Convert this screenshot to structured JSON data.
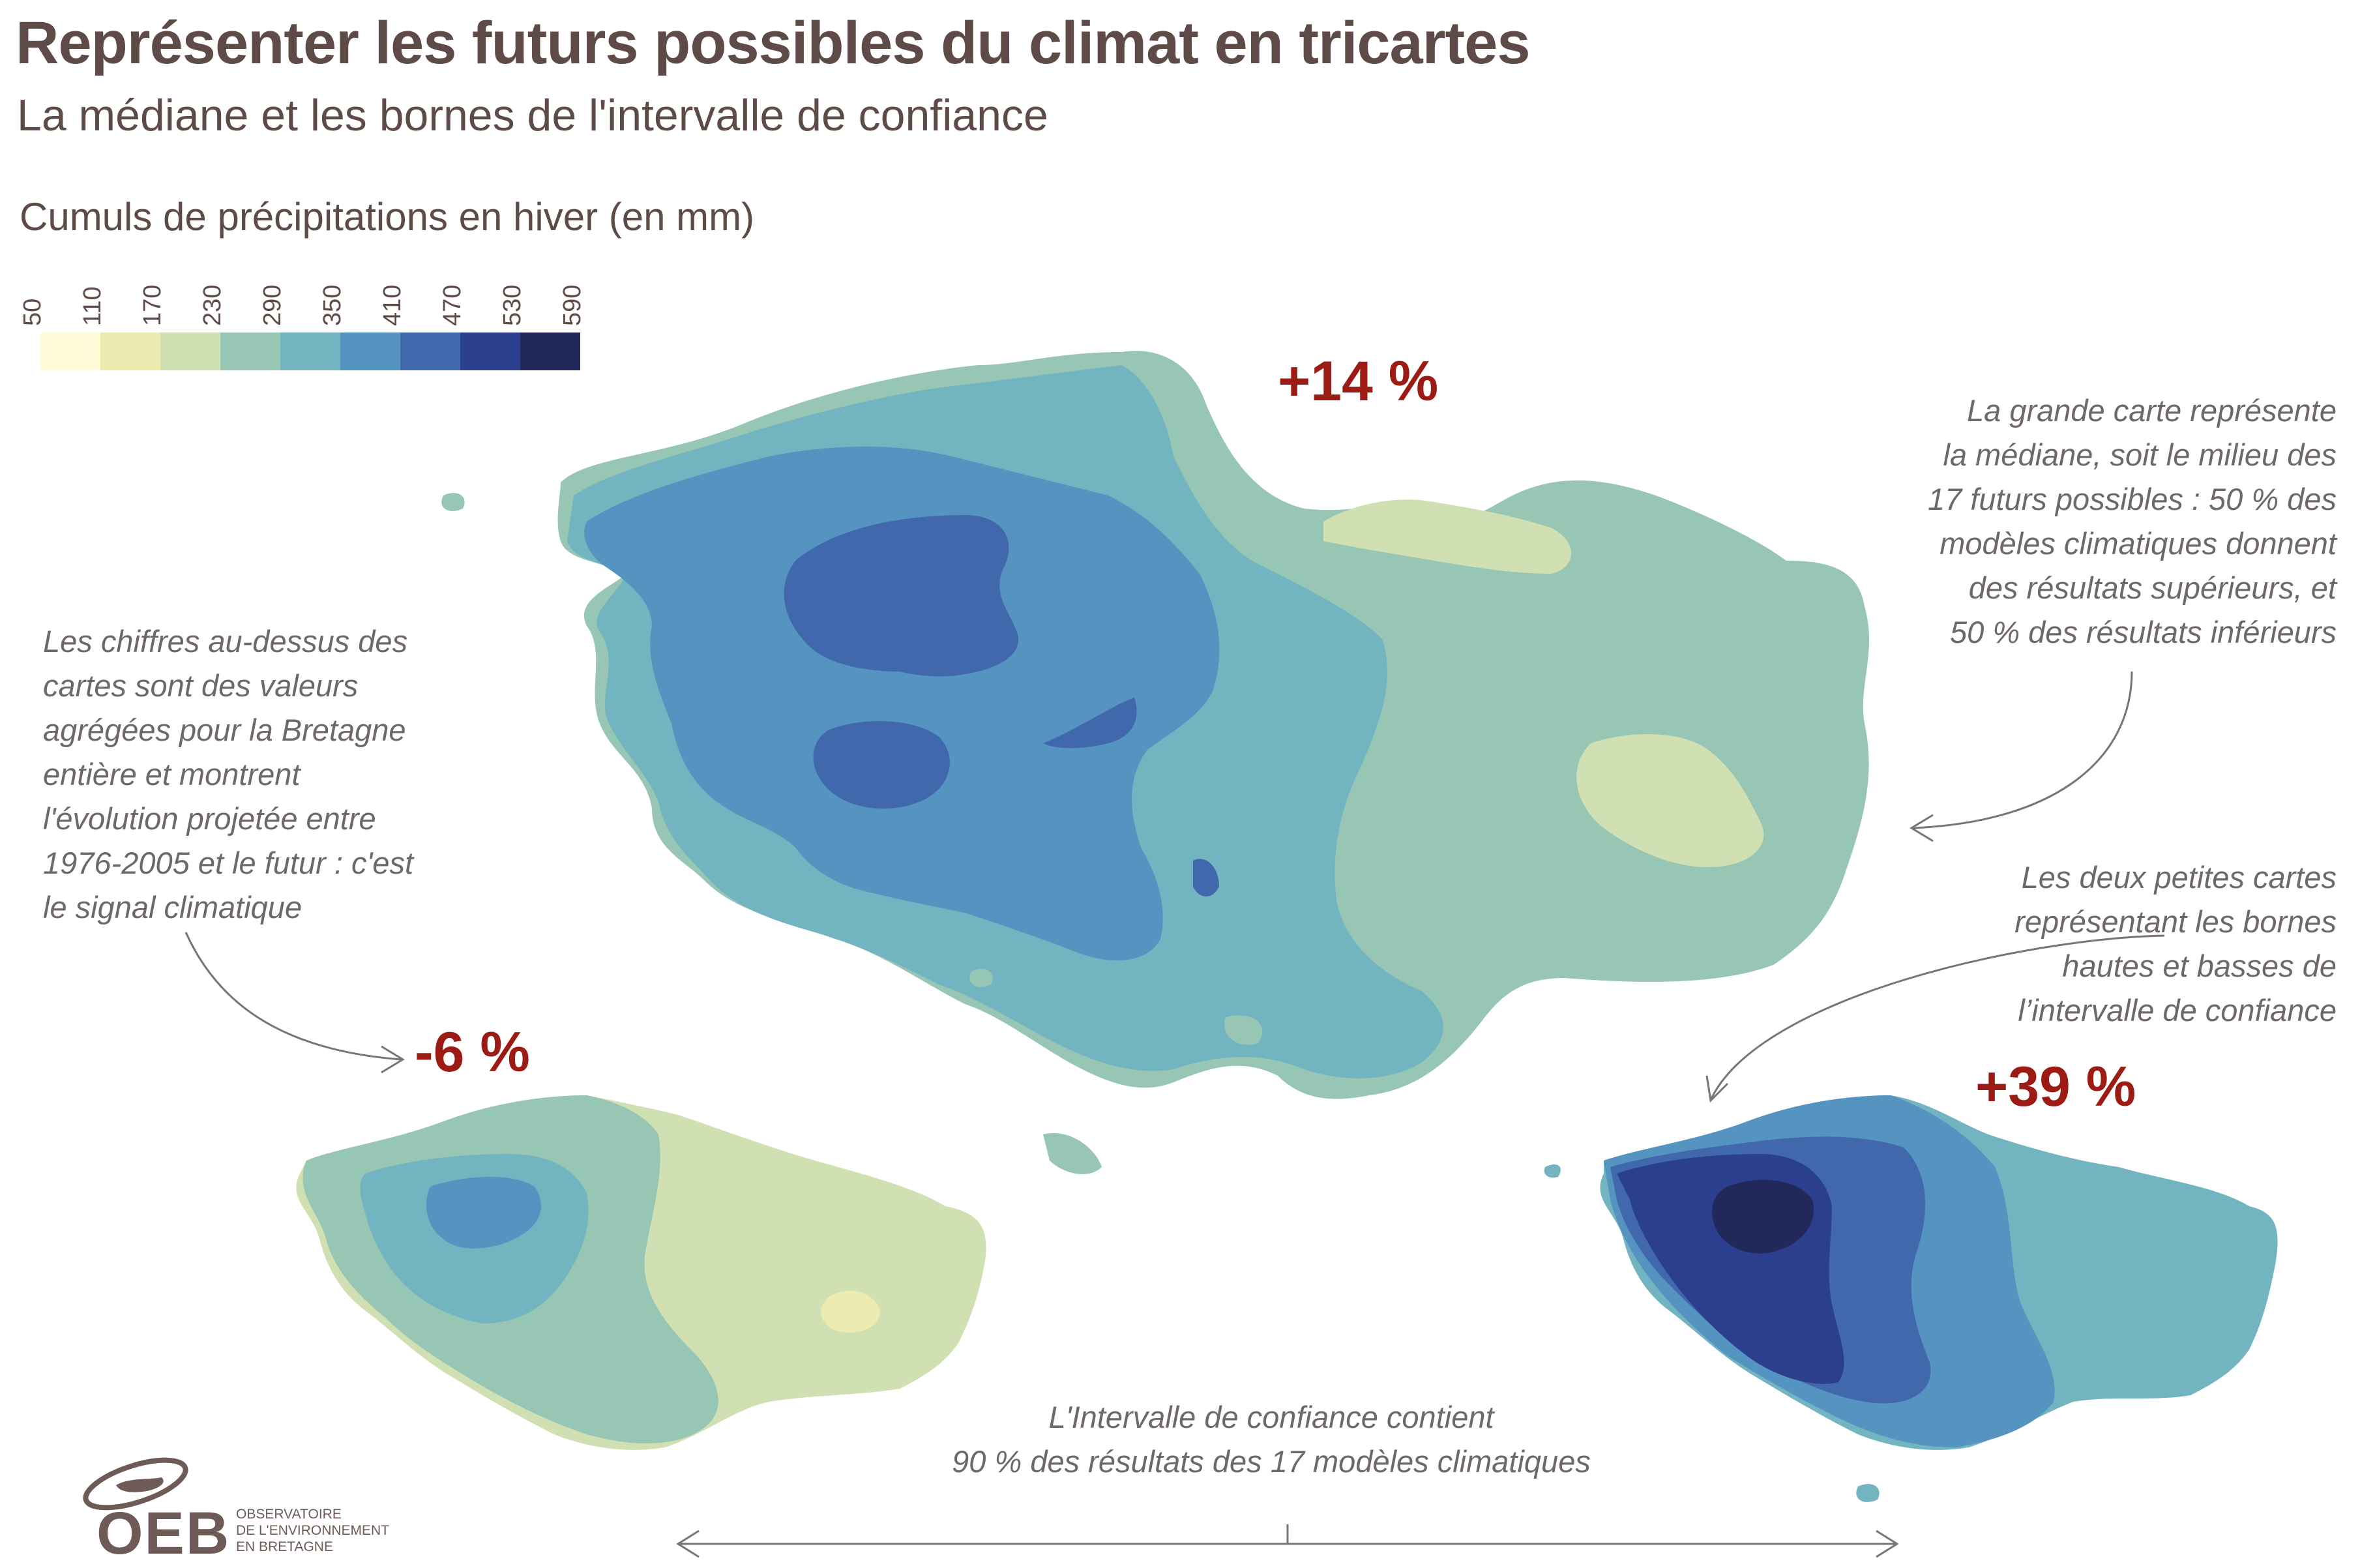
{
  "header": {
    "title": "Représenter les futurs possibles du climat en tricartes",
    "subtitle": "La médiane et les bornes de l'intervalle de confiance"
  },
  "legend": {
    "title": "Cumuls de précipitations en hiver (en mm)",
    "ticks": [
      "50",
      "110",
      "170",
      "230",
      "290",
      "350",
      "410",
      "470",
      "530",
      "590"
    ],
    "colors": [
      "#fefbd6",
      "#eeebb0",
      "#d1e0b3",
      "#97c6b5",
      "#72b4c0",
      "#5593c0",
      "#4168ad",
      "#2c3f8f",
      "#23285a"
    ]
  },
  "maps": {
    "median": {
      "signal": "+14 %"
    },
    "low": {
      "signal": "-6 %"
    },
    "high": {
      "signal": "+39 %"
    }
  },
  "notes": {
    "right_top": [
      "La grande carte représente",
      "la médiane, soit le milieu des",
      "17 futurs possibles : 50 % des",
      "modèles climatiques donnent",
      "des résultats supérieurs, et",
      "50 % des résultats inférieurs"
    ],
    "left": [
      "Les chiffres au-dessus des",
      "cartes sont des valeurs",
      "agrégées pour la Bretagne",
      "entière et montrent",
      "l'évolution projetée entre",
      "1976-2005 et le futur : c'est",
      "le signal climatique"
    ],
    "right_bottom": [
      "Les deux petites cartes",
      "représentant les bornes",
      "hautes et basses de",
      "l’intervalle de confiance"
    ],
    "bottom": [
      "L'Intervalle de confiance contient",
      "90 % des résultats des 17 modèles climatiques"
    ]
  },
  "logo": {
    "acronym": "OEB",
    "line1": "OBSERVATOIRE",
    "line2": "DE L'ENVIRONNEMENT",
    "line3": "EN BRETAGNE"
  }
}
